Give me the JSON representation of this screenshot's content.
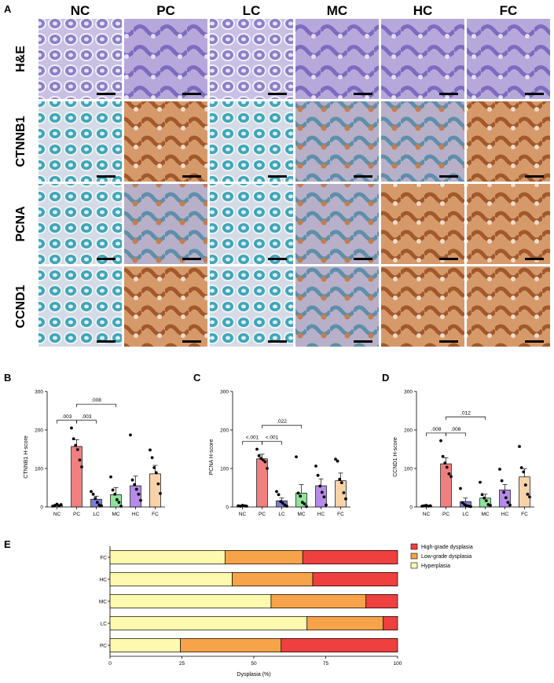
{
  "panel_letters": [
    "A",
    "B",
    "C",
    "D",
    "E"
  ],
  "micrograph_grid": {
    "columns": [
      "NC",
      "PC",
      "LC",
      "MC",
      "HC",
      "FC"
    ],
    "rows": [
      "H&E",
      "CTNNB1",
      "PCNA",
      "CCND1"
    ]
  },
  "colors": {
    "NC": "#9a9a9a",
    "PC": "#f08080",
    "LC": "#7b7fd6",
    "MC": "#8fe39a",
    "HC": "#b68be8",
    "FC": "#f8d2a8",
    "high_grade": "#ef4040",
    "low_grade": "#f6a34a",
    "hyperplasia": "#fdfab0"
  },
  "chart_data": [
    {
      "type": "bar",
      "panel": "B",
      "ylabel": "CTNNB1 H-score",
      "categories": [
        "NC",
        "PC",
        "LC",
        "MC",
        "HC",
        "FC"
      ],
      "values": [
        4,
        157,
        20,
        32,
        55,
        86
      ],
      "errors": [
        2,
        18,
        8,
        18,
        25,
        22
      ],
      "points": [
        [
          2,
          4,
          7,
          3,
          6
        ],
        [
          205,
          177,
          160,
          149,
          122,
          104
        ],
        [
          40,
          33,
          22,
          12,
          5,
          3
        ],
        [
          78,
          44,
          33,
          19,
          12,
          2
        ],
        [
          187,
          70,
          58,
          46,
          33,
          17
        ],
        [
          148,
          128,
          102,
          89,
          60,
          35
        ]
      ],
      "ylim": [
        0,
        300
      ],
      "yticks": [
        0,
        100,
        200,
        300
      ],
      "significance": [
        {
          "from": "NC",
          "to": "PC",
          "label": ".003"
        },
        {
          "from": "PC",
          "to": "LC",
          "label": ".003"
        },
        {
          "from": "PC",
          "to": "MC",
          "label": ".008"
        }
      ]
    },
    {
      "type": "bar",
      "panel": "C",
      "ylabel": "PCNA H-score",
      "categories": [
        "NC",
        "PC",
        "LC",
        "MC",
        "HC",
        "FC"
      ],
      "values": [
        3,
        125,
        16,
        36,
        55,
        68
      ],
      "errors": [
        1,
        12,
        7,
        22,
        18,
        20
      ],
      "points": [
        [
          3,
          2,
          4,
          3,
          2
        ],
        [
          150,
          133,
          126,
          122,
          117,
          100
        ],
        [
          40,
          32,
          14,
          10,
          5,
          2
        ],
        [
          130,
          36,
          28,
          12,
          8,
          1
        ],
        [
          106,
          82,
          54,
          38,
          26,
          5
        ],
        [
          124,
          119,
          72,
          63,
          37,
          21
        ]
      ],
      "ylim": [
        0,
        300
      ],
      "yticks": [
        0,
        100,
        200,
        300
      ],
      "significance": [
        {
          "from": "NC",
          "to": "PC",
          "label": "<.001"
        },
        {
          "from": "PC",
          "to": "LC",
          "label": "<.001"
        },
        {
          "from": "PC",
          "to": "MC",
          "label": ".022"
        }
      ]
    },
    {
      "type": "bar",
      "panel": "D",
      "ylabel": "CCND1 H-score",
      "categories": [
        "NC",
        "PC",
        "LC",
        "MC",
        "HC",
        "FC"
      ],
      "values": [
        3,
        112,
        14,
        23,
        44,
        78
      ],
      "errors": [
        1,
        16,
        9,
        10,
        14,
        21
      ],
      "points": [
        [
          2,
          3,
          4,
          2,
          3
        ],
        [
          172,
          131,
          114,
          103,
          86,
          79
        ],
        [
          48,
          11,
          6,
          3,
          2,
          1
        ],
        [
          64,
          32,
          23,
          16,
          6,
          4
        ],
        [
          98,
          68,
          38,
          24,
          12,
          5
        ],
        [
          157,
          102,
          91,
          57,
          33,
          26
        ]
      ],
      "ylim": [
        0,
        300
      ],
      "yticks": [
        0,
        100,
        200,
        300
      ],
      "significance": [
        {
          "from": "NC",
          "to": "PC",
          "label": ".008"
        },
        {
          "from": "PC",
          "to": "LC",
          "label": ".008"
        },
        {
          "from": "PC",
          "to": "MC",
          "label": ".012"
        }
      ]
    },
    {
      "type": "bar",
      "panel": "E",
      "stacked": true,
      "orientation": "horizontal",
      "xlabel": "Dysplasia (%)",
      "categories": [
        "FC",
        "HC",
        "MC",
        "LC",
        "PC"
      ],
      "xlim": [
        0,
        100
      ],
      "xticks": [
        0,
        25,
        50,
        75,
        100
      ],
      "series": [
        {
          "name": "Hyperplasia",
          "values": [
            40,
            42.5,
            56,
            68.5,
            24.5
          ]
        },
        {
          "name": "Low-grade dysplasia",
          "values": [
            27,
            28,
            33,
            26.5,
            35
          ]
        },
        {
          "name": "High-grade dysplasia",
          "values": [
            33,
            29.5,
            11,
            5,
            40.5
          ]
        }
      ],
      "legend": [
        "High-grade dysplasia",
        "Low-grade dysplasia",
        "Hyperplasia"
      ],
      "legend_position": "top-right"
    }
  ]
}
